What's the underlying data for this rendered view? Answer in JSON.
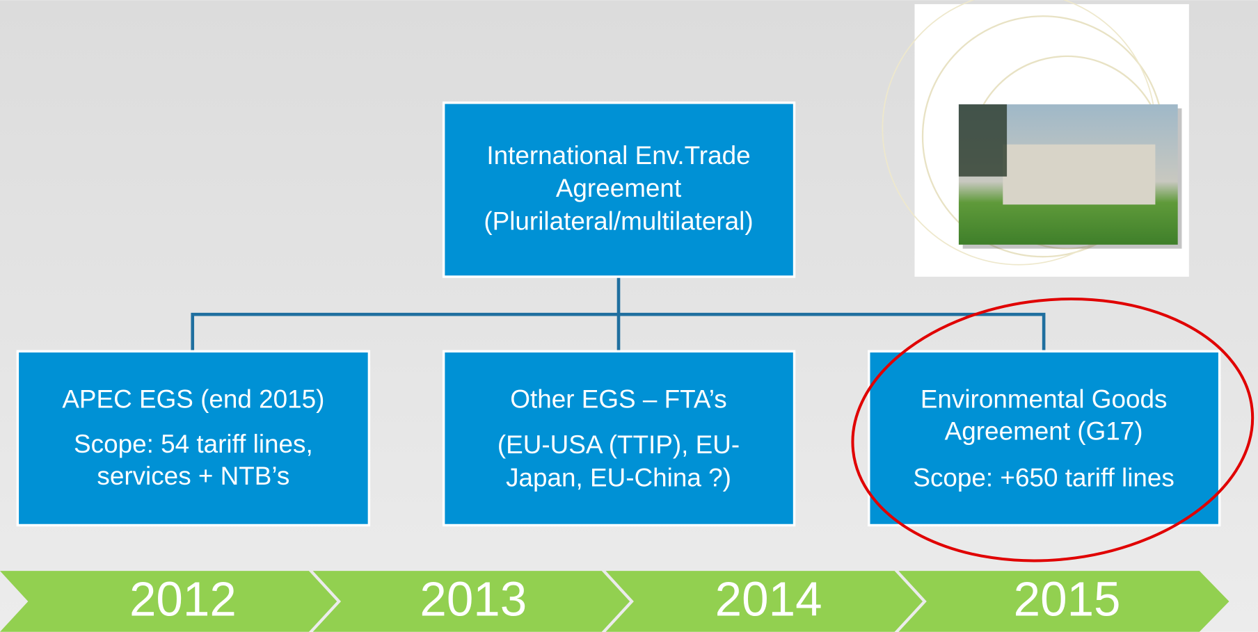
{
  "top": {
    "lines": [
      "International Env.Trade",
      "Agreement",
      "(Plurilateral/multilateral)"
    ]
  },
  "nodes": [
    {
      "lines": [
        "APEC EGS (end 2015)",
        "Scope: 54 tariff lines,",
        "services + NTB’s"
      ]
    },
    {
      "lines": [
        "Other EGS – FTA’s",
        "(EU-USA (TTIP), EU-",
        "Japan, EU-China ?)"
      ]
    },
    {
      "lines": [
        "Environmental Goods",
        "Agreement (G17)",
        "Scope: +650 tariff lines"
      ]
    }
  ],
  "timeline": [
    "2012",
    "2013",
    "2014",
    "2015"
  ]
}
